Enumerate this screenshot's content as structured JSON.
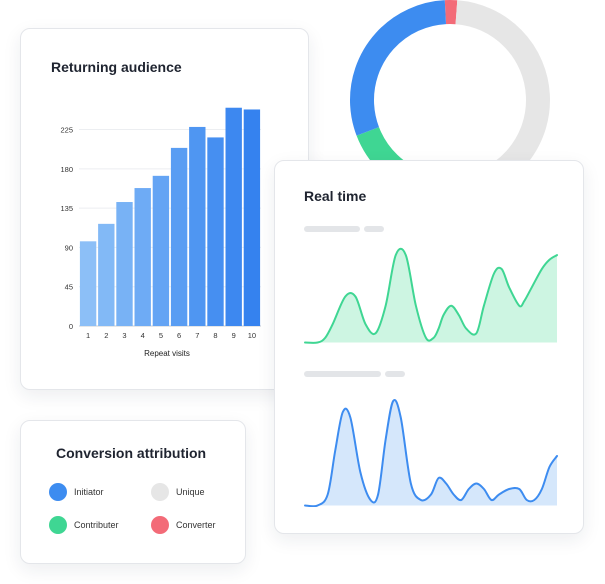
{
  "returning_audience": {
    "title": "Returning audience"
  },
  "conversion_attribution": {
    "title": "Conversion attribution",
    "legend": [
      {
        "label": "Initiator",
        "color": "#3d8cf0"
      },
      {
        "label": "Unique",
        "color": "#e6e6e6"
      },
      {
        "label": "Contributer",
        "color": "#3fd693"
      },
      {
        "label": "Converter",
        "color": "#f36b78"
      }
    ]
  },
  "real_time": {
    "title": "Real time"
  },
  "chart_data": [
    {
      "type": "bar",
      "title": "Returning audience",
      "xlabel": "Repeat visits",
      "ylabel": "",
      "categories": [
        "1",
        "2",
        "3",
        "4",
        "5",
        "6",
        "7",
        "8",
        "9",
        "10"
      ],
      "values": [
        97,
        117,
        142,
        158,
        172,
        204,
        228,
        216,
        250,
        248
      ],
      "yticks": [
        0,
        45,
        90,
        135,
        180,
        225
      ],
      "ylim": [
        0,
        260
      ],
      "grid": true,
      "colors": [
        "#8cbff7",
        "#82b9f6",
        "#78b2f5",
        "#6eabf5",
        "#64a4f4",
        "#599df3",
        "#4f96f2",
        "#468ff1",
        "#3d88f0",
        "#3582ef"
      ]
    },
    {
      "type": "pie",
      "title": "",
      "donut": true,
      "slices": [
        {
          "label": "Converter",
          "value": 2,
          "color": "#f36b78"
        },
        {
          "label": "Unique",
          "value": 54,
          "color": "#e6e6e6"
        },
        {
          "label": "Contributer",
          "value": 14,
          "color": "#3fd693"
        },
        {
          "label": "Initiator",
          "value": 30,
          "color": "#3d8cf0"
        }
      ]
    },
    {
      "type": "area",
      "title": "",
      "color": "#3fd693",
      "fill": "#cdf5e2",
      "x": [
        0,
        5,
        8,
        11,
        16,
        20,
        24,
        28,
        32,
        36,
        40,
        44,
        48,
        51,
        53,
        55,
        58,
        61,
        64,
        68,
        71,
        75,
        78,
        81,
        85,
        87,
        90,
        94,
        97,
        100
      ],
      "values": [
        0,
        0,
        5,
        20,
        50,
        50,
        20,
        10,
        40,
        95,
        95,
        40,
        5,
        5,
        15,
        30,
        40,
        30,
        15,
        10,
        40,
        75,
        80,
        60,
        40,
        45,
        60,
        80,
        90,
        95
      ],
      "ylim": [
        0,
        100
      ]
    },
    {
      "type": "area",
      "title": "",
      "color": "#3d8cf0",
      "fill": "#d5e7fb",
      "x": [
        0,
        5,
        9,
        12,
        15,
        18,
        22,
        26,
        29,
        32,
        35,
        38,
        42,
        46,
        50,
        53,
        56,
        59,
        62,
        65,
        68,
        71,
        74,
        77,
        81,
        85,
        88,
        91,
        94,
        97,
        100
      ],
      "values": [
        0,
        0,
        10,
        50,
        85,
        80,
        30,
        5,
        10,
        60,
        95,
        80,
        20,
        5,
        10,
        25,
        20,
        10,
        5,
        15,
        20,
        15,
        5,
        10,
        15,
        15,
        5,
        5,
        15,
        35,
        45
      ],
      "ylim": [
        0,
        100
      ]
    }
  ]
}
